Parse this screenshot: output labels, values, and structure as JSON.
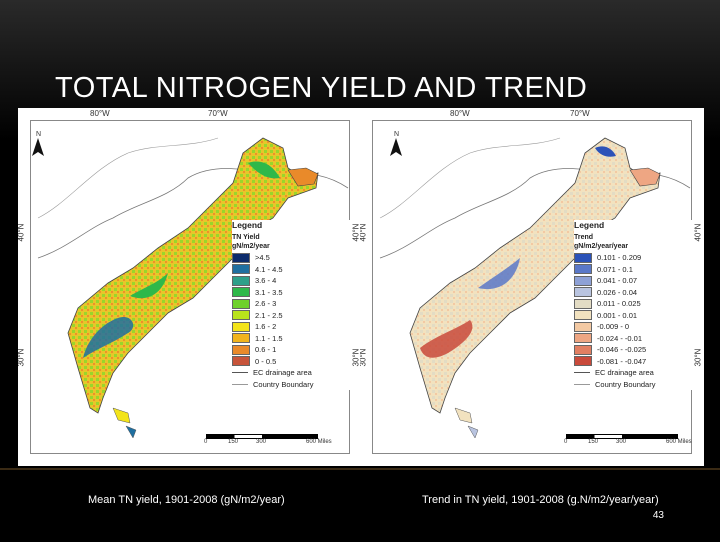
{
  "slide": {
    "title": "TOTAL NITROGEN YIELD AND TREND",
    "page_number": "43"
  },
  "left_map": {
    "caption": "Mean TN yield, 1901-2008 (gN/m2/year)",
    "top_labels": [
      "80°W",
      "70°W"
    ],
    "side_labels": [
      "40°N",
      "30°N"
    ],
    "north": "N",
    "legend": {
      "title": "Legend",
      "subtitle": "TN Yield",
      "unit": "gN/m2/year",
      "items": [
        {
          "label": ">4.5",
          "color": "#0c2b6b"
        },
        {
          "label": "4.1 - 4.5",
          "color": "#1f6fa0"
        },
        {
          "label": "3.6 - 4",
          "color": "#2ea08a"
        },
        {
          "label": "3.1 - 3.5",
          "color": "#2fb84a"
        },
        {
          "label": "2.6 - 3",
          "color": "#6fd12b"
        },
        {
          "label": "2.1 - 2.5",
          "color": "#b9e31c"
        },
        {
          "label": "1.6 - 2",
          "color": "#f3e41a"
        },
        {
          "label": "1.1 - 1.5",
          "color": "#f1b41d"
        },
        {
          "label": "0.6 - 1",
          "color": "#e98a2a"
        },
        {
          "label": "0 - 0.5",
          "color": "#c7543a"
        }
      ],
      "drainage": "EC drainage area",
      "boundary": "Country Boundary"
    },
    "scale": [
      "0",
      "150",
      "300",
      "600 Miles"
    ]
  },
  "right_map": {
    "caption": "Trend in TN yield, 1901-2008 (g.N/m2/year/year)",
    "top_labels": [
      "80°W",
      "70°W"
    ],
    "side_labels": [
      "40°N",
      "30°N"
    ],
    "north": "N",
    "legend": {
      "title": "Legend",
      "subtitle": "Trend",
      "unit": "gN/m2/year/year",
      "items": [
        {
          "label": "0.101 - 0.209",
          "color": "#2b52b8"
        },
        {
          "label": "0.071 - 0.1",
          "color": "#5a78c8"
        },
        {
          "label": "0.041 - 0.07",
          "color": "#8ea1d6"
        },
        {
          "label": "0.026 - 0.04",
          "color": "#b9c4e0"
        },
        {
          "label": "0.011 - 0.025",
          "color": "#e3dcc4"
        },
        {
          "label": "0.001 - 0.01",
          "color": "#f2e2bf"
        },
        {
          "label": "-0.009 - 0",
          "color": "#f3c9a3"
        },
        {
          "label": "-0.024 - -0.01",
          "color": "#eea683"
        },
        {
          "label": "-0.046 - -0.025",
          "color": "#e17f62"
        },
        {
          "label": "-0.081 - -0.047",
          "color": "#c94a3b"
        }
      ],
      "drainage": "EC drainage area",
      "boundary": "Country Boundary"
    },
    "scale": [
      "0",
      "150",
      "300",
      "600 Miles"
    ]
  }
}
